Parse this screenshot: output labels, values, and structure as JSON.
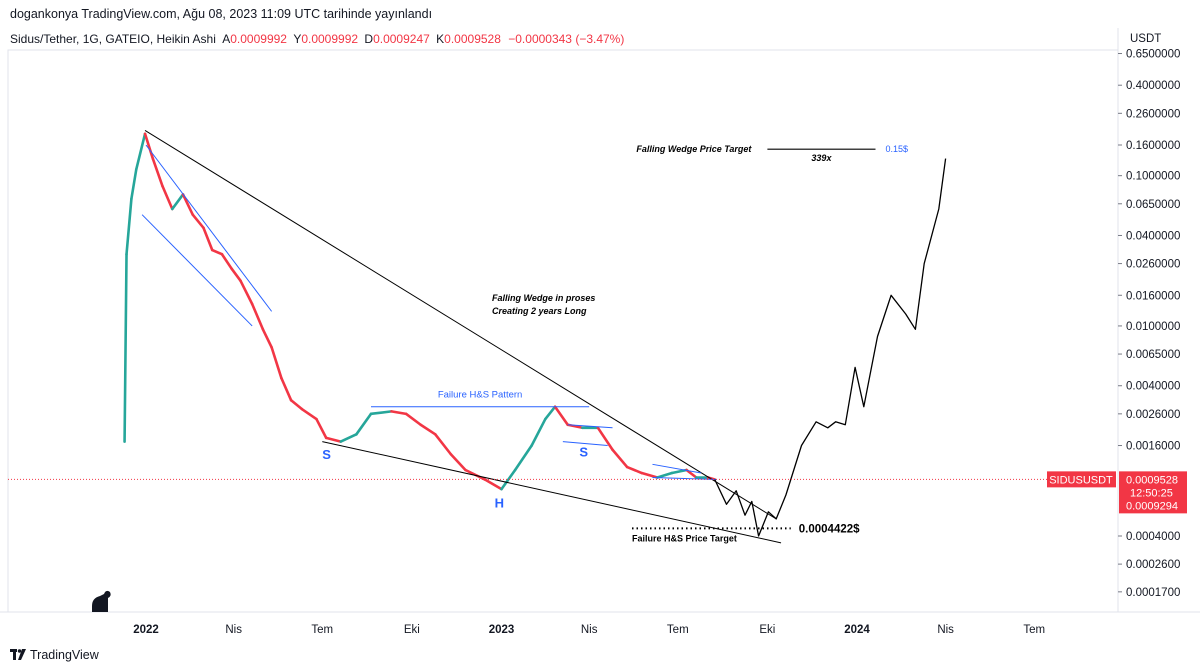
{
  "header": {
    "publish_line": "dogankonya TradingView.com, Ağu 08, 2023 11:09 UTC tarihinde yayınlandı",
    "symbol_line": "Sidus/Tether, 1G, GATEIO, Heikin Ashi",
    "ohlc": {
      "o_key": "A",
      "o": "0.0009992",
      "h_key": "Y",
      "h": "0.0009992",
      "l_key": "D",
      "l": "0.0009247",
      "c_key": "K",
      "c": "0.0009528",
      "change": "−0.0000343 (−3.47%)"
    }
  },
  "footer": {
    "brand": "TradingView"
  },
  "colors": {
    "up": "#26a69a",
    "down": "#f23645",
    "trendline": "#000000",
    "channel": "#2962ff",
    "price_tag": "#f23645"
  },
  "chart_data": {
    "type": "line",
    "scale": "log",
    "currency_label": "USDT",
    "y_ticks": [
      "0.6500000",
      "0.4000000",
      "0.2600000",
      "0.1600000",
      "0.1000000",
      "0.0650000",
      "0.0400000",
      "0.0260000",
      "0.0160000",
      "0.0100000",
      "0.0065000",
      "0.0040000",
      "0.0026000",
      "0.0016000",
      "0.0004000",
      "0.0002600",
      "0.0001700"
    ],
    "x_ticks": [
      {
        "label": "2022",
        "date": "2022-01-01",
        "bold": true
      },
      {
        "label": "Nis",
        "date": "2022-04-01",
        "bold": false
      },
      {
        "label": "Tem",
        "date": "2022-07-01",
        "bold": false
      },
      {
        "label": "Eki",
        "date": "2022-10-01",
        "bold": false
      },
      {
        "label": "2023",
        "date": "2023-01-01",
        "bold": true
      },
      {
        "label": "Nis",
        "date": "2023-04-01",
        "bold": false
      },
      {
        "label": "Tem",
        "date": "2023-07-01",
        "bold": false
      },
      {
        "label": "Eki",
        "date": "2023-10-01",
        "bold": false
      },
      {
        "label": "2024",
        "date": "2024-01-01",
        "bold": true
      },
      {
        "label": "Nis",
        "date": "2024-04-01",
        "bold": false
      },
      {
        "label": "Tem",
        "date": "2024-07-01",
        "bold": false
      }
    ],
    "price_series": [
      [
        "2021-12-10",
        0.0017
      ],
      [
        "2021-12-12",
        0.03
      ],
      [
        "2021-12-17",
        0.07
      ],
      [
        "2021-12-22",
        0.11
      ],
      [
        "2021-12-31",
        0.19
      ],
      [
        "2022-01-08",
        0.13
      ],
      [
        "2022-01-18",
        0.085
      ],
      [
        "2022-01-28",
        0.06
      ],
      [
        "2022-02-08",
        0.075
      ],
      [
        "2022-02-18",
        0.055
      ],
      [
        "2022-03-01",
        0.045
      ],
      [
        "2022-03-10",
        0.032
      ],
      [
        "2022-03-20",
        0.03
      ],
      [
        "2022-03-30",
        0.024
      ],
      [
        "2022-04-08",
        0.02
      ],
      [
        "2022-04-20",
        0.014
      ],
      [
        "2022-05-01",
        0.0095
      ],
      [
        "2022-05-10",
        0.0072
      ],
      [
        "2022-05-20",
        0.0045
      ],
      [
        "2022-05-30",
        0.0032
      ],
      [
        "2022-06-10",
        0.0028
      ],
      [
        "2022-06-25",
        0.0024
      ],
      [
        "2022-07-05",
        0.0018
      ],
      [
        "2022-07-20",
        0.0017
      ],
      [
        "2022-08-05",
        0.0019
      ],
      [
        "2022-08-20",
        0.0026
      ],
      [
        "2022-09-10",
        0.0027
      ],
      [
        "2022-09-25",
        0.0026
      ],
      [
        "2022-10-10",
        0.0022
      ],
      [
        "2022-10-25",
        0.0019
      ],
      [
        "2022-11-10",
        0.0014
      ],
      [
        "2022-11-25",
        0.0011
      ],
      [
        "2022-12-15",
        0.00095
      ],
      [
        "2023-01-01",
        0.00082
      ],
      [
        "2023-01-15",
        0.0011
      ],
      [
        "2023-02-01",
        0.0016
      ],
      [
        "2023-02-15",
        0.0024
      ],
      [
        "2023-02-25",
        0.0029
      ],
      [
        "2023-03-10",
        0.0022
      ],
      [
        "2023-03-25",
        0.0021
      ],
      [
        "2023-04-10",
        0.0021
      ],
      [
        "2023-04-25",
        0.0015
      ],
      [
        "2023-05-10",
        0.00115
      ],
      [
        "2023-05-25",
        0.00105
      ],
      [
        "2023-06-10",
        0.00098
      ],
      [
        "2023-06-25",
        0.00105
      ],
      [
        "2023-07-10",
        0.0011
      ],
      [
        "2023-07-20",
        0.00098
      ],
      [
        "2023-08-01",
        0.00098
      ],
      [
        "2023-08-08",
        0.00095
      ]
    ],
    "projection_path": [
      [
        "2023-08-08",
        0.00095
      ],
      [
        "2023-08-20",
        0.00065
      ],
      [
        "2023-08-30",
        0.0008
      ],
      [
        "2023-09-08",
        0.00055
      ],
      [
        "2023-09-15",
        0.00068
      ],
      [
        "2023-09-22",
        0.0004
      ],
      [
        "2023-10-02",
        0.00058
      ],
      [
        "2023-10-10",
        0.00052
      ],
      [
        "2023-10-20",
        0.00075
      ],
      [
        "2023-11-05",
        0.0016
      ],
      [
        "2023-11-20",
        0.0023
      ],
      [
        "2023-12-02",
        0.0021
      ],
      [
        "2023-12-10",
        0.0023
      ],
      [
        "2023-12-20",
        0.0022
      ],
      [
        "2023-12-30",
        0.0053
      ],
      [
        "2024-01-08",
        0.0029
      ],
      [
        "2024-01-22",
        0.0085
      ],
      [
        "2024-02-05",
        0.016
      ],
      [
        "2024-02-20",
        0.012
      ],
      [
        "2024-03-01",
        0.0095
      ],
      [
        "2024-03-10",
        0.026
      ],
      [
        "2024-03-25",
        0.06
      ],
      [
        "2024-04-01",
        0.13
      ]
    ],
    "wedge_upper": [
      [
        "2021-12-31",
        0.2
      ],
      [
        "2023-10-10",
        0.00052
      ]
    ],
    "wedge_lower": [
      [
        "2022-07-01",
        0.0017
      ],
      [
        "2023-10-15",
        0.00036
      ]
    ],
    "descending_channel": [
      {
        "from": [
          "2022-01-01",
          0.16
        ],
        "to": [
          "2022-05-10",
          0.0125
        ]
      },
      {
        "from": [
          "2021-12-28",
          0.055
        ],
        "to": [
          "2022-04-20",
          0.01
        ]
      }
    ],
    "neckline_hs": {
      "from": [
        "2022-08-20",
        0.0029
      ],
      "to": [
        "2023-04-01",
        0.0029
      ],
      "label": "Failure H&S Pattern"
    },
    "right_shoulder_lines": [
      {
        "from": [
          "2023-03-10",
          0.0022
        ],
        "to": [
          "2023-04-25",
          0.0021
        ]
      },
      {
        "from": [
          "2023-03-05",
          0.0017
        ],
        "to": [
          "2023-04-20",
          0.0016
        ]
      }
    ],
    "flag_lines": [
      {
        "from": [
          "2023-06-05",
          0.0012
        ],
        "to": [
          "2023-07-25",
          0.00105
        ]
      },
      {
        "from": [
          "2023-06-05",
          0.00098
        ],
        "to": [
          "2023-08-10",
          0.00095
        ]
      }
    ],
    "hs_target": {
      "from": [
        "2023-05-15",
        0.00045
      ],
      "to": [
        "2023-10-25",
        0.00045
      ],
      "label": "0.0004422$",
      "caption": "Failure H&S Price Target"
    },
    "wedge_target": {
      "from": [
        "2023-10-01",
        0.15
      ],
      "to": [
        "2024-01-20",
        0.15
      ],
      "label": "Falling Wedge Price Target",
      "value": "0.15$",
      "multiple": "339x"
    },
    "pattern_labels": {
      "S1": "S",
      "H": "H",
      "S2": "S",
      "wedge_line1": "Falling Wedge in proses",
      "wedge_line2": "Creating 2 years Long"
    },
    "last_price": {
      "symbol": "SIDUSUSDT",
      "price": "0.0009528",
      "countdown": "12:50:25",
      "secondary": "0.0009294",
      "value": 0.0009528
    }
  }
}
